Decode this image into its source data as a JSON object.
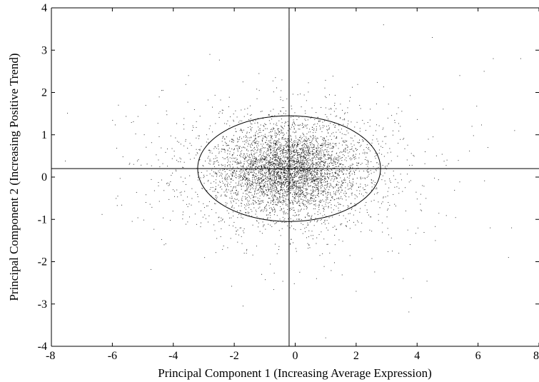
{
  "chart_data": {
    "type": "scatter",
    "title": "",
    "xlabel": "Principal Component 1 (Increasing Average Expression)",
    "ylabel": "Principal Component 2 (Increasing Positive Trend)",
    "xlim": [
      -8,
      8
    ],
    "ylim": [
      -4,
      4
    ],
    "xticks": [
      -8,
      -6,
      -4,
      -2,
      0,
      2,
      4,
      6,
      8
    ],
    "yticks": [
      -4,
      -3,
      -2,
      -1,
      0,
      1,
      2,
      3,
      4
    ],
    "grid": false,
    "legend": "none",
    "point_color": "#000000",
    "reference_lines": {
      "vertical_x": -0.2,
      "horizontal_y": 0.2
    },
    "ellipse": {
      "center": [
        -0.2,
        0.2
      ],
      "semi_axis_x": 3.0,
      "semi_axis_y": 1.25
    },
    "point_cloud": {
      "approx_count": 5000,
      "center": [
        -0.2,
        0.15
      ],
      "core_spread": [
        0.9,
        0.45
      ],
      "body_spread": [
        1.7,
        0.7
      ],
      "outlier_examples": [
        [
          -5.8,
          1.7
        ],
        [
          -5.3,
          0.3
        ],
        [
          -4.9,
          -0.6
        ],
        [
          -3.5,
          2.4
        ],
        [
          -2.8,
          2.9
        ],
        [
          -1.6,
          -1.8
        ],
        [
          -1.1,
          -2.3
        ],
        [
          -0.2,
          3.5
        ],
        [
          0.7,
          -2.4
        ],
        [
          1.0,
          -3.8
        ],
        [
          2.0,
          -2.7
        ],
        [
          2.9,
          3.6
        ],
        [
          3.4,
          -1.8
        ],
        [
          4.6,
          -1.5
        ],
        [
          4.5,
          3.3
        ],
        [
          5.4,
          2.4
        ],
        [
          6.2,
          2.5
        ],
        [
          6.5,
          2.8
        ],
        [
          6.4,
          -1.2
        ],
        [
          7.0,
          -1.9
        ],
        [
          7.1,
          -1.2
        ],
        [
          7.4,
          2.8
        ],
        [
          7.2,
          1.1
        ],
        [
          5.8,
          1.2
        ],
        [
          -4.3,
          -1.6
        ]
      ]
    }
  }
}
